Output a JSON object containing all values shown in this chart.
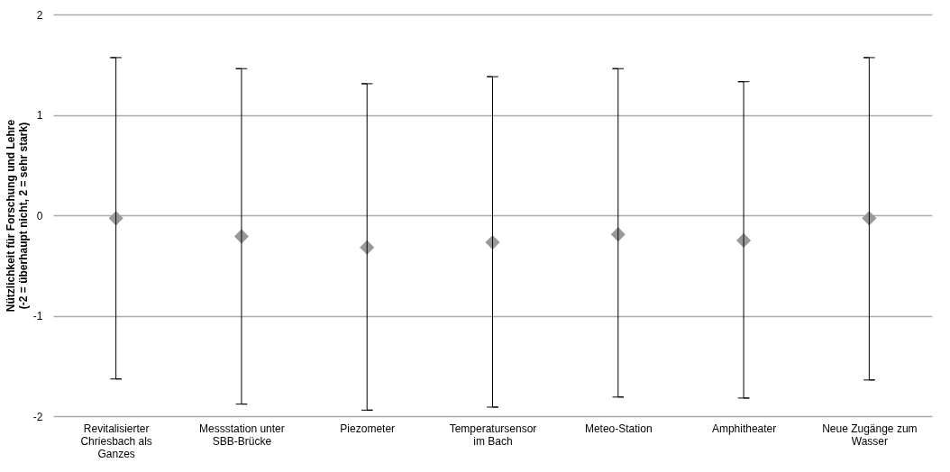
{
  "chart_data": {
    "type": "scatter",
    "ylabel": "Nützlichkeit für Forschung und Lehre\n(-2 = überhaupt nicht, 2 = sehr stark)",
    "categories": [
      "Revitalisierter Chriesbach als Ganzes",
      "Messstation unter SBB-Brücke",
      "Piezometer",
      "Temperatursensor im Bach",
      "Meteo-Station",
      "Amphitheater",
      "Neue Zugänge zum Wasser"
    ],
    "values": [
      -0.03,
      -0.21,
      -0.32,
      -0.27,
      -0.19,
      -0.25,
      -0.03
    ],
    "errors": [
      [
        -1.63,
        1.57
      ],
      [
        -1.88,
        1.46
      ],
      [
        -1.94,
        1.31
      ],
      [
        -1.91,
        1.38
      ],
      [
        -1.81,
        1.46
      ],
      [
        -1.82,
        1.33
      ],
      [
        -1.64,
        1.57
      ]
    ],
    "color": "#999999",
    "marker": "diamond",
    "ylim": [
      -2,
      2
    ],
    "yticks": [
      -2,
      -1,
      0,
      1,
      2
    ],
    "grid": "y"
  }
}
